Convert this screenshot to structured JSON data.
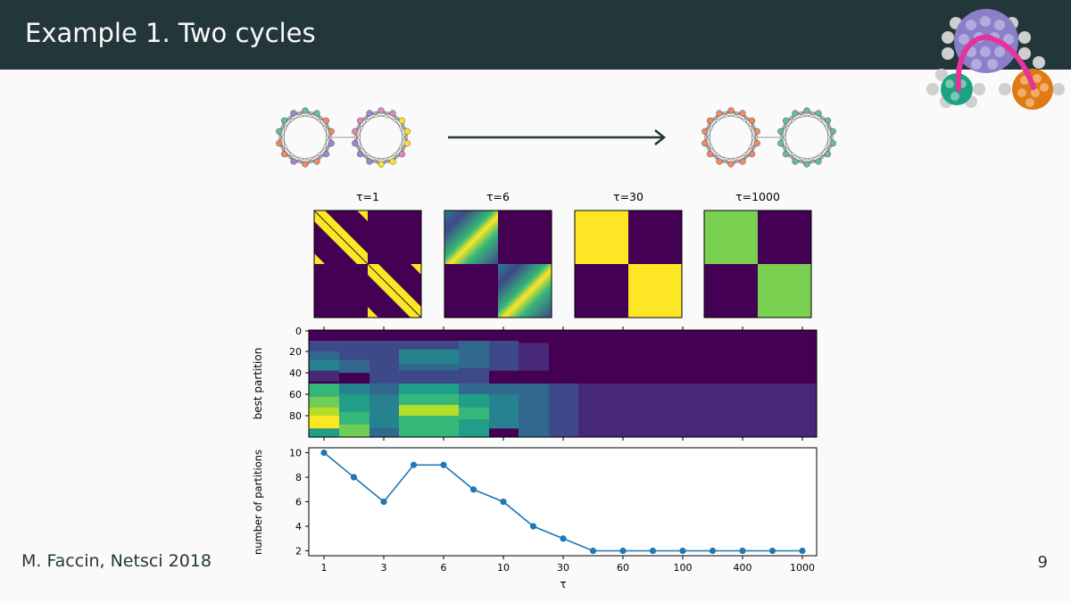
{
  "slide": {
    "title": "Example 1. Two cycles",
    "footer": "M. Faccin, Netsci 2018",
    "page_number": "9"
  },
  "matrices": [
    {
      "label": "τ=1"
    },
    {
      "label": "τ=6"
    },
    {
      "label": "τ=30"
    },
    {
      "label": "τ=1000"
    }
  ],
  "colors": {
    "titlebar": "#23373b",
    "viridis_dark": "#440154",
    "viridis_yellow": "#fde725",
    "viridis_green": "#7ad151",
    "line": "#1f77b4",
    "arc": "#e5329c"
  },
  "chart_data": [
    {
      "type": "heatmap",
      "title": "",
      "ylabel": "best partition",
      "y_ticks": [
        "0",
        "20",
        "40",
        "60",
        "80"
      ],
      "note": "best partition assignment matrix vs τ"
    },
    {
      "type": "line",
      "title": "",
      "xlabel": "τ",
      "ylabel": "number of partitions",
      "x_scale": "log",
      "x_ticks": [
        "1",
        "3",
        "6",
        "10",
        "30",
        "60",
        "100",
        "400",
        "1000"
      ],
      "y_ticks": [
        "2",
        "4",
        "6",
        "8",
        "10"
      ],
      "ylim": [
        1.6,
        10.4
      ],
      "grid": false,
      "series": [
        {
          "name": "",
          "x": [
            1,
            2,
            3,
            4.5,
            6,
            8,
            10,
            18,
            30,
            45,
            60,
            80,
            100,
            200,
            400,
            600,
            1000
          ],
          "values": [
            10,
            8,
            6,
            9,
            9,
            7,
            6,
            4,
            3,
            2,
            2,
            2,
            2,
            2,
            2,
            2,
            2
          ]
        }
      ]
    }
  ]
}
